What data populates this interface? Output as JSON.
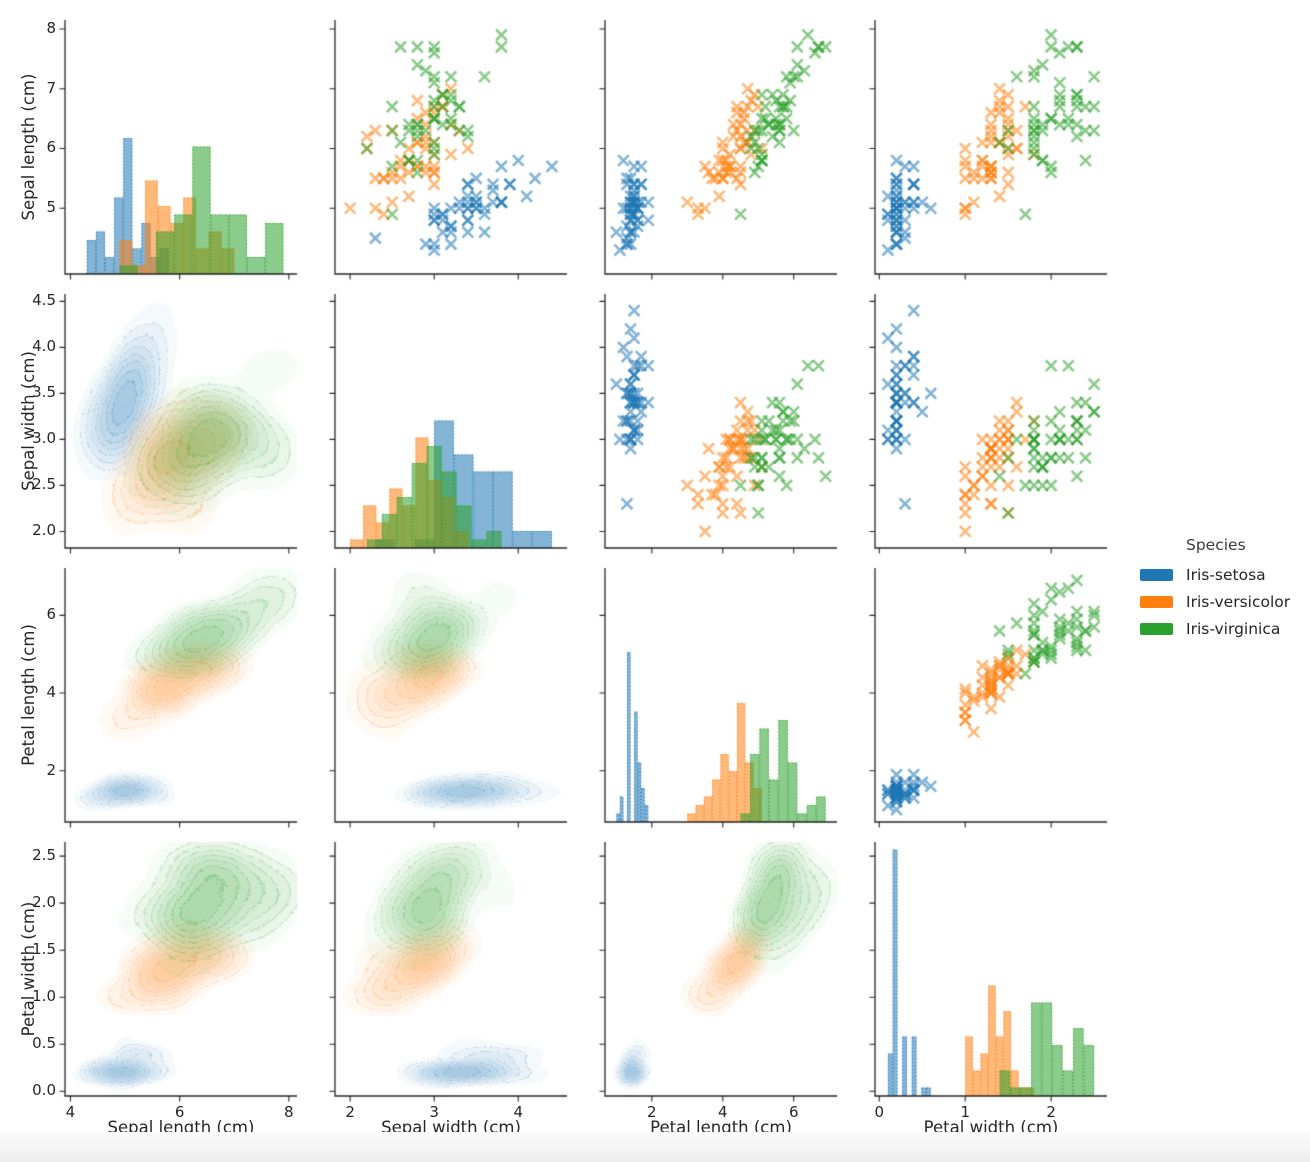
{
  "chart_data": {
    "type": "pairplot",
    "panel_types": {
      "diagonal": "histogram",
      "upper_triangle": "scatter",
      "lower_triangle": "kde-contour"
    },
    "marker": "x",
    "legend": {
      "title": "Species",
      "position": "right",
      "entries": [
        {
          "label": "Iris-setosa",
          "color": "#1f77b4"
        },
        {
          "label": "Iris-versicolor",
          "color": "#ff7f0e"
        },
        {
          "label": "Iris-virginica",
          "color": "#2ca02c"
        }
      ]
    },
    "variables": [
      {
        "key": "sepal_length",
        "label": "Sepal length (cm)",
        "lim": [
          3.9,
          8.15
        ],
        "xticks": {
          "values": [
            4,
            6,
            8
          ],
          "labels": [
            "4",
            "6",
            "8"
          ]
        },
        "yticks": {
          "values": [
            5,
            6,
            7,
            8
          ],
          "labels": [
            "5",
            "6",
            "7",
            "8"
          ]
        }
      },
      {
        "key": "sepal_width",
        "label": "Sepal width (cm)",
        "lim": [
          1.82,
          4.58
        ],
        "xticks": {
          "values": [
            2,
            3,
            4
          ],
          "labels": [
            "2",
            "3",
            "4"
          ]
        },
        "yticks": {
          "values": [
            2.0,
            2.5,
            3.0,
            3.5,
            4.0,
            4.5
          ],
          "labels": [
            "2.0",
            "2.5",
            "3.0",
            "3.5",
            "4.0",
            "4.5"
          ]
        }
      },
      {
        "key": "petal_length",
        "label": "Petal length (cm)",
        "lim": [
          0.68,
          7.22
        ],
        "xticks": {
          "values": [
            2,
            4,
            6
          ],
          "labels": [
            "2",
            "4",
            "6"
          ]
        },
        "yticks": {
          "values": [
            2,
            4,
            6
          ],
          "labels": [
            "2",
            "4",
            "6"
          ]
        }
      },
      {
        "key": "petal_width",
        "label": "Petal width (cm)",
        "lim": [
          -0.05,
          2.65
        ],
        "xticks": {
          "values": [
            0,
            1,
            2
          ],
          "labels": [
            "0",
            "1",
            "2"
          ]
        },
        "yticks": {
          "values": [
            0.0,
            0.5,
            1.0,
            1.5,
            2.0,
            2.5
          ],
          "labels": [
            "0.0",
            "0.5",
            "1.0",
            "1.5",
            "2.0",
            "2.5"
          ]
        }
      }
    ],
    "series": [
      {
        "name": "Iris-setosa",
        "color": "#1f77b4",
        "data": [
          [
            5.1,
            3.5,
            1.4,
            0.2
          ],
          [
            4.9,
            3.0,
            1.4,
            0.2
          ],
          [
            4.7,
            3.2,
            1.3,
            0.2
          ],
          [
            4.6,
            3.1,
            1.5,
            0.2
          ],
          [
            5.0,
            3.6,
            1.4,
            0.2
          ],
          [
            5.4,
            3.9,
            1.7,
            0.4
          ],
          [
            4.6,
            3.4,
            1.4,
            0.3
          ],
          [
            5.0,
            3.4,
            1.5,
            0.2
          ],
          [
            4.4,
            2.9,
            1.4,
            0.2
          ],
          [
            4.9,
            3.1,
            1.5,
            0.1
          ],
          [
            5.4,
            3.7,
            1.5,
            0.2
          ],
          [
            4.8,
            3.4,
            1.6,
            0.2
          ],
          [
            4.8,
            3.0,
            1.4,
            0.1
          ],
          [
            4.3,
            3.0,
            1.1,
            0.1
          ],
          [
            5.8,
            4.0,
            1.2,
            0.2
          ],
          [
            5.7,
            4.4,
            1.5,
            0.4
          ],
          [
            5.4,
            3.9,
            1.3,
            0.4
          ],
          [
            5.1,
            3.5,
            1.4,
            0.3
          ],
          [
            5.7,
            3.8,
            1.7,
            0.3
          ],
          [
            5.1,
            3.8,
            1.5,
            0.3
          ],
          [
            5.4,
            3.4,
            1.7,
            0.2
          ],
          [
            5.1,
            3.7,
            1.5,
            0.4
          ],
          [
            4.6,
            3.6,
            1.0,
            0.2
          ],
          [
            5.1,
            3.3,
            1.7,
            0.5
          ],
          [
            4.8,
            3.4,
            1.9,
            0.2
          ],
          [
            5.0,
            3.0,
            1.6,
            0.2
          ],
          [
            5.0,
            3.4,
            1.6,
            0.4
          ],
          [
            5.2,
            3.5,
            1.5,
            0.2
          ],
          [
            5.2,
            3.4,
            1.4,
            0.2
          ],
          [
            4.7,
            3.2,
            1.6,
            0.2
          ],
          [
            4.8,
            3.1,
            1.6,
            0.2
          ],
          [
            5.4,
            3.4,
            1.5,
            0.4
          ],
          [
            5.2,
            4.1,
            1.5,
            0.1
          ],
          [
            5.5,
            4.2,
            1.4,
            0.2
          ],
          [
            4.9,
            3.1,
            1.5,
            0.2
          ],
          [
            5.0,
            3.2,
            1.2,
            0.2
          ],
          [
            5.5,
            3.5,
            1.3,
            0.2
          ],
          [
            4.9,
            3.6,
            1.4,
            0.1
          ],
          [
            4.4,
            3.0,
            1.3,
            0.2
          ],
          [
            5.1,
            3.4,
            1.5,
            0.2
          ],
          [
            5.0,
            3.5,
            1.3,
            0.3
          ],
          [
            4.5,
            2.3,
            1.3,
            0.3
          ],
          [
            4.4,
            3.2,
            1.3,
            0.2
          ],
          [
            5.0,
            3.5,
            1.6,
            0.6
          ],
          [
            5.1,
            3.8,
            1.9,
            0.4
          ],
          [
            4.8,
            3.0,
            1.4,
            0.3
          ],
          [
            5.1,
            3.8,
            1.6,
            0.2
          ],
          [
            4.6,
            3.2,
            1.4,
            0.2
          ],
          [
            5.3,
            3.7,
            1.5,
            0.2
          ],
          [
            5.0,
            3.3,
            1.4,
            0.2
          ]
        ]
      },
      {
        "name": "Iris-versicolor",
        "color": "#ff7f0e",
        "data": [
          [
            7.0,
            3.2,
            4.7,
            1.4
          ],
          [
            6.4,
            3.2,
            4.5,
            1.5
          ],
          [
            6.9,
            3.1,
            4.9,
            1.5
          ],
          [
            5.5,
            2.3,
            4.0,
            1.3
          ],
          [
            6.5,
            2.8,
            4.6,
            1.5
          ],
          [
            5.7,
            2.8,
            4.5,
            1.3
          ],
          [
            6.3,
            3.3,
            4.7,
            1.6
          ],
          [
            4.9,
            2.4,
            3.3,
            1.0
          ],
          [
            6.6,
            2.9,
            4.6,
            1.3
          ],
          [
            5.2,
            2.7,
            3.9,
            1.4
          ],
          [
            5.0,
            2.0,
            3.5,
            1.0
          ],
          [
            5.9,
            3.0,
            4.2,
            1.5
          ],
          [
            6.0,
            2.2,
            4.0,
            1.0
          ],
          [
            6.1,
            2.9,
            4.7,
            1.4
          ],
          [
            5.6,
            2.9,
            3.6,
            1.3
          ],
          [
            6.7,
            3.1,
            4.4,
            1.4
          ],
          [
            5.6,
            3.0,
            4.5,
            1.5
          ],
          [
            5.8,
            2.7,
            4.1,
            1.0
          ],
          [
            6.2,
            2.2,
            4.5,
            1.5
          ],
          [
            5.6,
            2.5,
            3.9,
            1.1
          ],
          [
            5.9,
            3.2,
            4.8,
            1.8
          ],
          [
            6.1,
            2.8,
            4.0,
            1.3
          ],
          [
            6.3,
            2.5,
            4.9,
            1.5
          ],
          [
            6.1,
            2.8,
            4.7,
            1.2
          ],
          [
            6.4,
            2.9,
            4.3,
            1.3
          ],
          [
            6.6,
            3.0,
            4.4,
            1.4
          ],
          [
            6.8,
            2.8,
            4.8,
            1.4
          ],
          [
            6.7,
            3.0,
            5.0,
            1.7
          ],
          [
            6.0,
            2.9,
            4.5,
            1.5
          ],
          [
            5.7,
            2.6,
            3.5,
            1.0
          ],
          [
            5.5,
            2.4,
            3.8,
            1.1
          ],
          [
            5.5,
            2.4,
            3.7,
            1.0
          ],
          [
            5.8,
            2.7,
            3.9,
            1.2
          ],
          [
            6.0,
            2.7,
            5.1,
            1.6
          ],
          [
            5.4,
            3.0,
            4.5,
            1.5
          ],
          [
            6.0,
            3.4,
            4.5,
            1.6
          ],
          [
            6.7,
            3.1,
            4.7,
            1.5
          ],
          [
            6.3,
            2.3,
            4.4,
            1.3
          ],
          [
            5.6,
            3.0,
            4.1,
            1.3
          ],
          [
            5.5,
            2.5,
            4.0,
            1.3
          ],
          [
            5.5,
            2.6,
            4.4,
            1.2
          ],
          [
            6.1,
            3.0,
            4.6,
            1.4
          ],
          [
            5.8,
            2.6,
            4.0,
            1.2
          ],
          [
            5.0,
            2.3,
            3.3,
            1.0
          ],
          [
            5.6,
            2.7,
            4.2,
            1.3
          ],
          [
            5.7,
            3.0,
            4.2,
            1.2
          ],
          [
            5.7,
            2.9,
            4.2,
            1.3
          ],
          [
            6.2,
            2.9,
            4.3,
            1.3
          ],
          [
            5.1,
            2.5,
            3.0,
            1.1
          ],
          [
            5.7,
            2.8,
            4.1,
            1.3
          ]
        ]
      },
      {
        "name": "Iris-virginica",
        "color": "#2ca02c",
        "data": [
          [
            6.3,
            3.3,
            6.0,
            2.5
          ],
          [
            5.8,
            2.7,
            5.1,
            1.9
          ],
          [
            7.1,
            3.0,
            5.9,
            2.1
          ],
          [
            6.3,
            2.9,
            5.6,
            1.8
          ],
          [
            6.5,
            3.0,
            5.8,
            2.2
          ],
          [
            7.6,
            3.0,
            6.6,
            2.1
          ],
          [
            4.9,
            2.5,
            4.5,
            1.7
          ],
          [
            7.3,
            2.9,
            6.3,
            1.8
          ],
          [
            6.7,
            2.5,
            5.8,
            1.8
          ],
          [
            7.2,
            3.6,
            6.1,
            2.5
          ],
          [
            6.5,
            3.2,
            5.1,
            2.0
          ],
          [
            6.4,
            2.7,
            5.3,
            1.9
          ],
          [
            6.8,
            3.0,
            5.5,
            2.1
          ],
          [
            5.7,
            2.5,
            5.0,
            2.0
          ],
          [
            5.8,
            2.8,
            5.1,
            2.4
          ],
          [
            6.4,
            3.2,
            5.3,
            2.3
          ],
          [
            6.5,
            3.0,
            5.5,
            1.8
          ],
          [
            7.7,
            3.8,
            6.7,
            2.2
          ],
          [
            7.7,
            2.6,
            6.9,
            2.3
          ],
          [
            6.0,
            2.2,
            5.0,
            1.5
          ],
          [
            6.9,
            3.2,
            5.7,
            2.3
          ],
          [
            5.6,
            2.8,
            4.9,
            2.0
          ],
          [
            7.7,
            2.8,
            6.7,
            2.0
          ],
          [
            6.3,
            2.7,
            4.9,
            1.8
          ],
          [
            6.7,
            3.3,
            5.7,
            2.1
          ],
          [
            7.2,
            3.2,
            6.0,
            1.8
          ],
          [
            6.2,
            2.8,
            4.8,
            1.8
          ],
          [
            6.1,
            3.0,
            4.9,
            1.8
          ],
          [
            6.4,
            2.8,
            5.6,
            2.1
          ],
          [
            7.2,
            3.0,
            5.8,
            1.6
          ],
          [
            7.4,
            2.8,
            6.1,
            1.9
          ],
          [
            7.9,
            3.8,
            6.4,
            2.0
          ],
          [
            6.4,
            2.8,
            5.6,
            2.2
          ],
          [
            6.3,
            2.8,
            5.1,
            1.5
          ],
          [
            6.1,
            2.6,
            5.6,
            1.4
          ],
          [
            7.7,
            3.0,
            6.1,
            2.3
          ],
          [
            6.3,
            3.4,
            5.6,
            2.4
          ],
          [
            6.4,
            3.1,
            5.5,
            1.8
          ],
          [
            6.0,
            3.0,
            4.8,
            1.8
          ],
          [
            6.9,
            3.1,
            5.4,
            2.1
          ],
          [
            6.7,
            3.1,
            5.6,
            2.4
          ],
          [
            6.9,
            3.1,
            5.1,
            2.3
          ],
          [
            5.8,
            2.7,
            5.1,
            1.9
          ],
          [
            6.8,
            3.2,
            5.9,
            2.3
          ],
          [
            6.7,
            3.3,
            5.7,
            2.5
          ],
          [
            6.7,
            3.0,
            5.2,
            2.3
          ],
          [
            6.3,
            2.5,
            5.0,
            1.9
          ],
          [
            6.5,
            3.0,
            5.2,
            2.0
          ],
          [
            6.2,
            3.4,
            5.4,
            2.3
          ],
          [
            5.9,
            3.0,
            5.1,
            1.8
          ]
        ]
      }
    ]
  }
}
